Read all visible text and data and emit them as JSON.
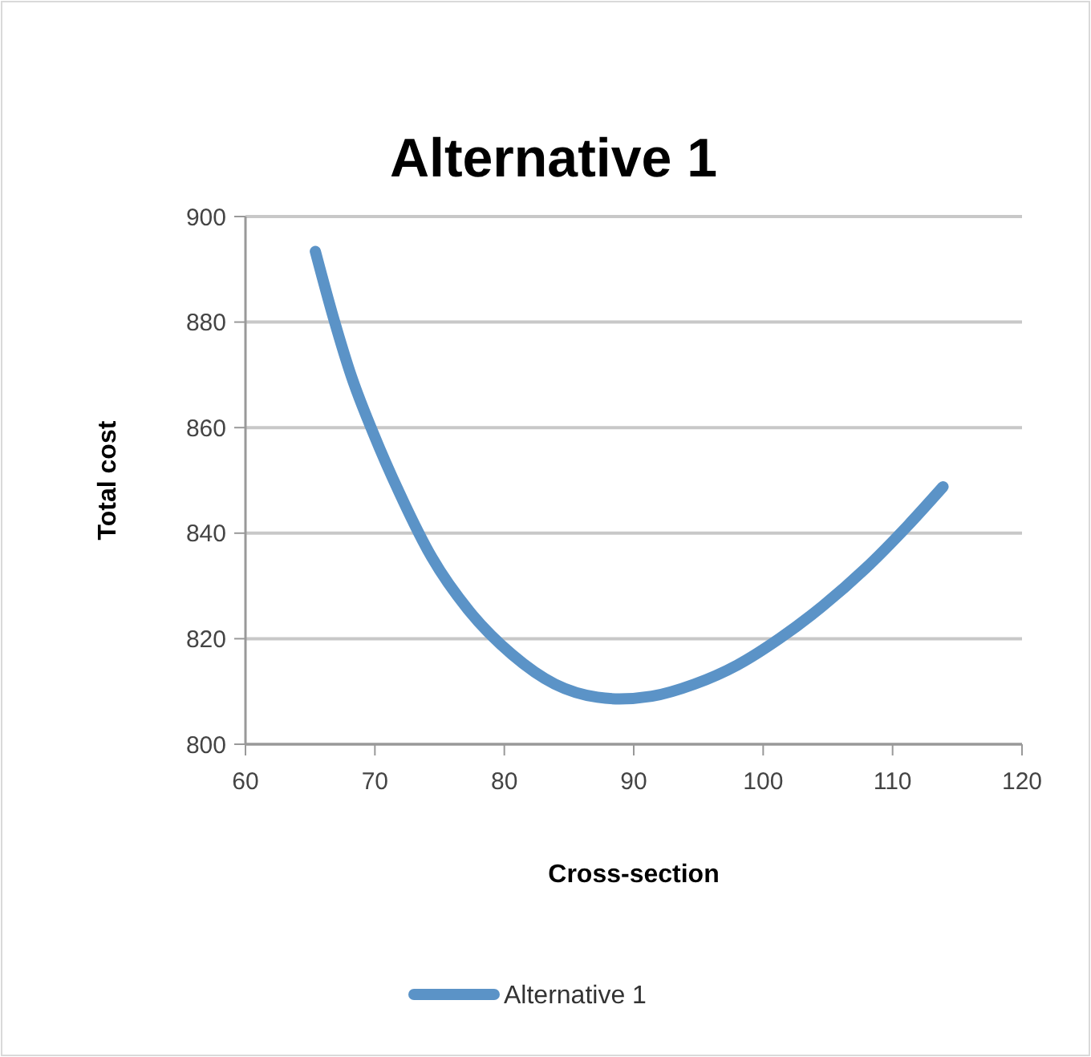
{
  "chart_data": {
    "type": "line",
    "title": "Alternative 1",
    "xlabel": "Cross-section",
    "ylabel": "Total cost",
    "xlim": [
      60,
      120
    ],
    "xticks": [
      60,
      70,
      80,
      90,
      100,
      110,
      120
    ],
    "ylim": [
      800,
      900
    ],
    "yticks": [
      800,
      820,
      840,
      860,
      880,
      900
    ],
    "grid": "y",
    "legend": "bottom",
    "marker": "none",
    "line_style": "solid",
    "series": [
      {
        "name": "Alternative 1",
        "color": "#5b93c7",
        "x": [
          65.4,
          66.8,
          68.2,
          69.9,
          71.9,
          74.4,
          77.3,
          80.6,
          83.9,
          87.2,
          88.9,
          91.4,
          94.7,
          98.0,
          101.3,
          104.6,
          107.9,
          111.2,
          113.9
        ],
        "values": [
          893.4,
          880.8,
          869.6,
          858.8,
          847.6,
          835.4,
          825.2,
          817.0,
          811.4,
          808.9,
          808.6,
          809.1,
          811.4,
          815.0,
          820.1,
          826.2,
          833.3,
          841.5,
          848.8
        ]
      }
    ]
  }
}
